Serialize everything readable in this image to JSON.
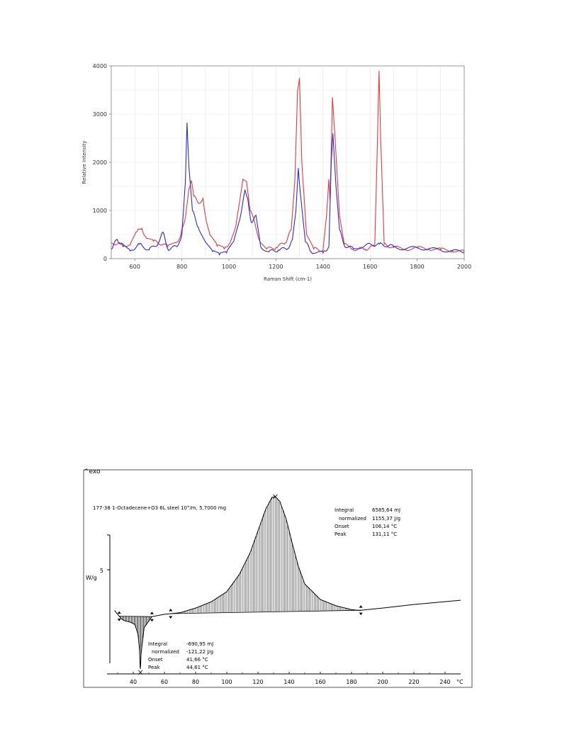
{
  "chart_data": [
    {
      "type": "line",
      "title": "",
      "xlabel": "Raman Shift (cm-1)",
      "ylabel": "Relative Intensity",
      "xlim": [
        500,
        2000
      ],
      "ylim": [
        0,
        4000
      ],
      "x_ticks": [
        "600",
        "800",
        "1000",
        "1200",
        "1400",
        "1600",
        "1800",
        "2000"
      ],
      "y_ticks": [
        "0",
        "1000",
        "2000",
        "3000",
        "4000"
      ],
      "grid": true,
      "colors": {
        "red": "#e8383d",
        "blue": "#2b2bd9"
      },
      "series": [
        {
          "color": "red",
          "points": [
            [
              500,
              330
            ],
            [
              540,
              300
            ],
            [
              580,
              280
            ],
            [
              610,
              560
            ],
            [
              630,
              630
            ],
            [
              650,
              420
            ],
            [
              680,
              360
            ],
            [
              720,
              300
            ],
            [
              740,
              250
            ],
            [
              770,
              330
            ],
            [
              790,
              420
            ],
            [
              800,
              620
            ],
            [
              815,
              850
            ],
            [
              830,
              1450
            ],
            [
              840,
              1620
            ],
            [
              850,
              1300
            ],
            [
              870,
              1150
            ],
            [
              890,
              1250
            ],
            [
              900,
              900
            ],
            [
              920,
              480
            ],
            [
              950,
              260
            ],
            [
              980,
              200
            ],
            [
              1000,
              300
            ],
            [
              1030,
              700
            ],
            [
              1060,
              1650
            ],
            [
              1075,
              1600
            ],
            [
              1090,
              1000
            ],
            [
              1110,
              750
            ],
            [
              1130,
              380
            ],
            [
              1160,
              200
            ],
            [
              1200,
              230
            ],
            [
              1240,
              330
            ],
            [
              1265,
              600
            ],
            [
              1280,
              1600
            ],
            [
              1292,
              3500
            ],
            [
              1300,
              3750
            ],
            [
              1310,
              2000
            ],
            [
              1330,
              500
            ],
            [
              1360,
              200
            ],
            [
              1400,
              180
            ],
            [
              1415,
              900
            ],
            [
              1425,
              1650
            ],
            [
              1430,
              1200
            ],
            [
              1440,
              3350
            ],
            [
              1450,
              2600
            ],
            [
              1470,
              900
            ],
            [
              1490,
              300
            ],
            [
              1520,
              200
            ],
            [
              1580,
              200
            ],
            [
              1620,
              260
            ],
            [
              1630,
              2200
            ],
            [
              1638,
              3900
            ],
            [
              1645,
              2500
            ],
            [
              1660,
              300
            ],
            [
              1700,
              230
            ],
            [
              1750,
              200
            ],
            [
              1800,
              220
            ],
            [
              1850,
              210
            ],
            [
              1900,
              190
            ],
            [
              1950,
              170
            ],
            [
              2000,
              140
            ]
          ]
        },
        {
          "color": "blue",
          "points": [
            [
              500,
              200
            ],
            [
              525,
              400
            ],
            [
              550,
              250
            ],
            [
              580,
              160
            ],
            [
              620,
              300
            ],
            [
              660,
              180
            ],
            [
              700,
              320
            ],
            [
              720,
              550
            ],
            [
              740,
              200
            ],
            [
              780,
              250
            ],
            [
              800,
              500
            ],
            [
              815,
              1600
            ],
            [
              822,
              2820
            ],
            [
              830,
              1900
            ],
            [
              845,
              1000
            ],
            [
              870,
              650
            ],
            [
              900,
              350
            ],
            [
              930,
              150
            ],
            [
              960,
              80
            ],
            [
              990,
              120
            ],
            [
              1020,
              350
            ],
            [
              1050,
              900
            ],
            [
              1068,
              1430
            ],
            [
              1080,
              1250
            ],
            [
              1095,
              750
            ],
            [
              1115,
              900
            ],
            [
              1135,
              250
            ],
            [
              1170,
              140
            ],
            [
              1210,
              180
            ],
            [
              1250,
              210
            ],
            [
              1270,
              400
            ],
            [
              1285,
              1000
            ],
            [
              1295,
              1880
            ],
            [
              1305,
              1300
            ],
            [
              1325,
              350
            ],
            [
              1350,
              140
            ],
            [
              1400,
              120
            ],
            [
              1425,
              250
            ],
            [
              1435,
              2000
            ],
            [
              1442,
              2600
            ],
            [
              1455,
              1500
            ],
            [
              1470,
              600
            ],
            [
              1490,
              280
            ],
            [
              1530,
              200
            ],
            [
              1580,
              280
            ],
            [
              1640,
              300
            ],
            [
              1700,
              250
            ],
            [
              1750,
              200
            ],
            [
              1800,
              230
            ],
            [
              1850,
              200
            ],
            [
              1900,
              180
            ],
            [
              1950,
              160
            ],
            [
              2000,
              130
            ]
          ]
        }
      ]
    },
    {
      "type": "area",
      "exo_label": "^exo",
      "sample_label": "177-38 1-Octadecene+O3 6L steel 10°/m, 5,7000 mg",
      "ylabel": "W/g",
      "y_tick": "5",
      "xlabel": "",
      "x_unit": "°C",
      "xlim": [
        25,
        250
      ],
      "x_ticks": [
        "40",
        "60",
        "80",
        "100",
        "120",
        "140",
        "160",
        "180",
        "200",
        "220",
        "240"
      ],
      "colors": {
        "curve": "#000000"
      },
      "curve_points": [
        [
          28,
          0.3
        ],
        [
          30,
          0.05
        ],
        [
          32,
          -0.2
        ],
        [
          34,
          -0.35
        ],
        [
          38,
          -0.45
        ],
        [
          41,
          -0.6
        ],
        [
          43,
          -1.2
        ],
        [
          44,
          -2.2
        ],
        [
          44.6,
          -3.7
        ],
        [
          45,
          -2.5
        ],
        [
          47,
          -0.8
        ],
        [
          52,
          -0.1
        ],
        [
          60,
          0.05
        ],
        [
          70,
          0.15
        ],
        [
          80,
          0.45
        ],
        [
          90,
          0.85
        ],
        [
          100,
          1.5
        ],
        [
          108,
          2.6
        ],
        [
          115,
          4.0
        ],
        [
          120,
          5.4
        ],
        [
          125,
          6.8
        ],
        [
          129,
          7.55
        ],
        [
          131.1,
          7.6
        ],
        [
          134,
          7.3
        ],
        [
          138,
          6.2
        ],
        [
          142,
          4.6
        ],
        [
          146,
          3.1
        ],
        [
          150,
          2.0
        ],
        [
          160,
          1.0
        ],
        [
          170,
          0.6
        ],
        [
          180,
          0.35
        ],
        [
          185,
          0.3
        ],
        [
          200,
          0.45
        ],
        [
          220,
          0.68
        ],
        [
          250,
          0.95
        ]
      ],
      "endotherm": {
        "integral_label": "Integral",
        "integral": "-690,95 mJ",
        "normalized_label": "normalized",
        "normalized": "-121,22 J/g",
        "onset_label": "Onset",
        "onset": "41,66 °C",
        "peak_label": "Peak",
        "peak": "44,61 °C",
        "range": [
          31,
          52
        ],
        "peak_x": 44.61
      },
      "exotherm": {
        "integral_label": "Integral",
        "integral": "6585,64 mJ",
        "normalized_label": "normalized",
        "normalized": "1155,37 J/g",
        "onset_label": "Onset",
        "onset": "106,14 °C",
        "peak_label": "Peak",
        "peak": "131,11 °C",
        "range": [
          64,
          186
        ],
        "peak_x": 131.11
      }
    }
  ]
}
